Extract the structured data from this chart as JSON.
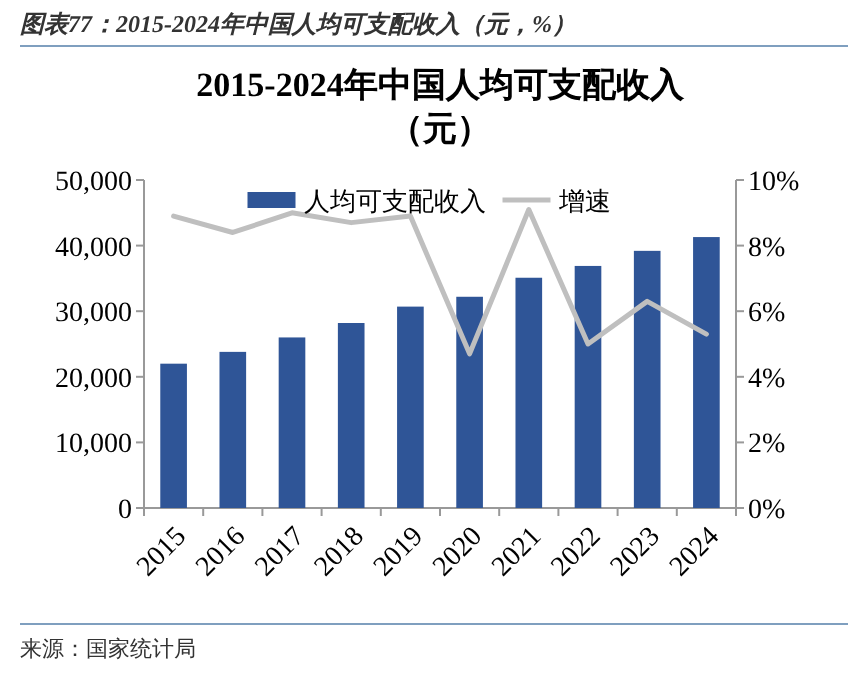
{
  "chart_data": {
    "type": "bar",
    "title": "2015-2024年中国人均可支配收入（元）",
    "annotations": [
      "图表77：2015-2024年中国人均可支配收入（元，%）",
      "来源：国家统计局"
    ],
    "categories": [
      "2015",
      "2016",
      "2017",
      "2018",
      "2019",
      "2020",
      "2021",
      "2022",
      "2023",
      "2024"
    ],
    "series": [
      {
        "name": "人均可支配收入",
        "color": "#2f5597",
        "values": [
          22000,
          23800,
          26000,
          28200,
          30700,
          32200,
          35100,
          36900,
          39200,
          41300
        ]
      },
      {
        "name": "增速",
        "type": "line",
        "axis": "y2",
        "color": "#bfbfbf",
        "values": [
          8.9,
          8.4,
          9.0,
          8.7,
          8.9,
          4.7,
          9.1,
          5.0,
          6.3,
          5.3
        ]
      }
    ],
    "ylim": [
      0,
      50000
    ],
    "yticks": [
      0,
      {
        "value": 10000,
        "label": "10,000"
      },
      {
        "value": 20000,
        "label": "20,000"
      },
      {
        "value": 30000,
        "label": "30,000"
      },
      {
        "value": 40000,
        "label": "40,000"
      },
      {
        "value": 50000,
        "label": "50,000"
      }
    ],
    "y2lim": [
      0,
      10
    ],
    "y2ticks": [
      {
        "value": 0,
        "label": "0%"
      },
      {
        "value": 2,
        "label": "2%"
      },
      {
        "value": 4,
        "label": "4%"
      },
      {
        "value": 6,
        "label": "6%"
      },
      {
        "value": 8,
        "label": "8%"
      },
      {
        "value": 10,
        "label": "10%"
      }
    ],
    "legend": "top",
    "grid": false,
    "marker": "none",
    "line_style": "solid"
  }
}
